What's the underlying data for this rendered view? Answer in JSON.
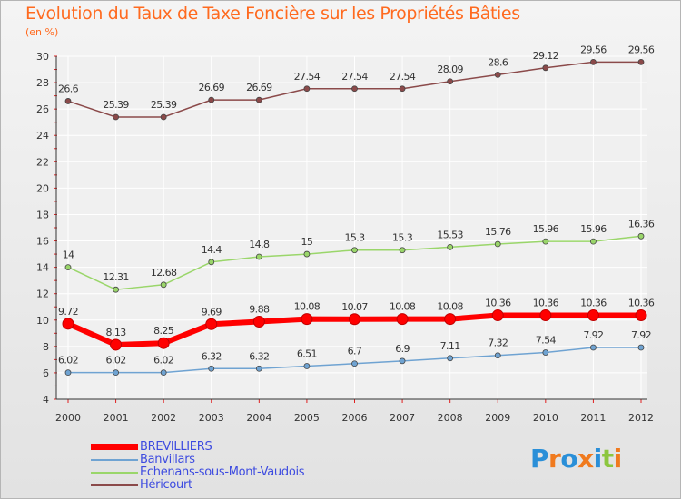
{
  "header": {
    "title": "Evolution du Taux de Taxe Foncière sur les Propriétés Bâties",
    "unit": "(en %)"
  },
  "logo": {
    "text": "Proxiti",
    "colors": [
      "#2a8fd8",
      "#f07a1e",
      "#2a8fd8",
      "#f07a1e",
      "#2a8fd8",
      "#8cc63f",
      "#f07a1e"
    ]
  },
  "chart_data": {
    "type": "line",
    "title": "Evolution du Taux de Taxe Foncière sur les Propriétés Bâties",
    "ylabel": "(en %)",
    "xlabel": "",
    "x": [
      "2000",
      "2001",
      "2002",
      "2003",
      "2004",
      "2005",
      "2006",
      "2007",
      "2008",
      "2009",
      "2010",
      "2011",
      "2012"
    ],
    "ylim": [
      4,
      30
    ],
    "yticks": [
      4,
      6,
      8,
      10,
      12,
      14,
      16,
      18,
      20,
      22,
      24,
      26,
      28,
      30
    ],
    "grid": true,
    "legend_position": "bottom-left",
    "series": [
      {
        "name": "BREVILLIERS",
        "color": "#ff0000",
        "values": [
          9.72,
          8.13,
          8.25,
          9.69,
          9.88,
          10.08,
          10.07,
          10.08,
          10.08,
          10.36,
          10.36,
          10.36,
          10.36
        ],
        "labels": [
          "9.72",
          "8.13",
          "8.25",
          "9.69",
          "9.88",
          "10.08",
          "10.07",
          "10.08",
          "10.08",
          "10.36",
          "10.36",
          "10.36",
          "10.36"
        ]
      },
      {
        "name": "Banvillars",
        "color": "#6fa3d2",
        "values": [
          6.02,
          6.02,
          6.02,
          6.32,
          6.32,
          6.51,
          6.7,
          6.9,
          7.11,
          7.32,
          7.54,
          7.92,
          7.92
        ],
        "labels": [
          "6.02",
          "6.02",
          "6.02",
          "6.32",
          "6.32",
          "6.51",
          "6.7",
          "6.9",
          "7.11",
          "7.32",
          "7.54",
          "7.92",
          "7.92"
        ]
      },
      {
        "name": "Echenans-sous-Mont-Vaudois",
        "color": "#9ad66a",
        "values": [
          14,
          12.31,
          12.68,
          14.4,
          14.8,
          15,
          15.3,
          15.3,
          15.53,
          15.76,
          15.96,
          15.96,
          16.36
        ],
        "labels": [
          "14",
          "12.31",
          "12.68",
          "14.4",
          "14.8",
          "15",
          "15.3",
          "15.3",
          "15.53",
          "15.76",
          "15.96",
          "15.96",
          "16.36"
        ]
      },
      {
        "name": "Héricourt",
        "color": "#8b4a4a",
        "values": [
          26.6,
          25.39,
          25.39,
          26.69,
          26.69,
          27.54,
          27.54,
          27.54,
          28.09,
          28.6,
          29.12,
          29.56,
          29.56
        ],
        "labels": [
          "26.6",
          "25.39",
          "25.39",
          "26.69",
          "26.69",
          "27.54",
          "27.54",
          "27.54",
          "28.09",
          "28.6",
          "29.12",
          "29.56",
          "29.56"
        ]
      }
    ]
  }
}
